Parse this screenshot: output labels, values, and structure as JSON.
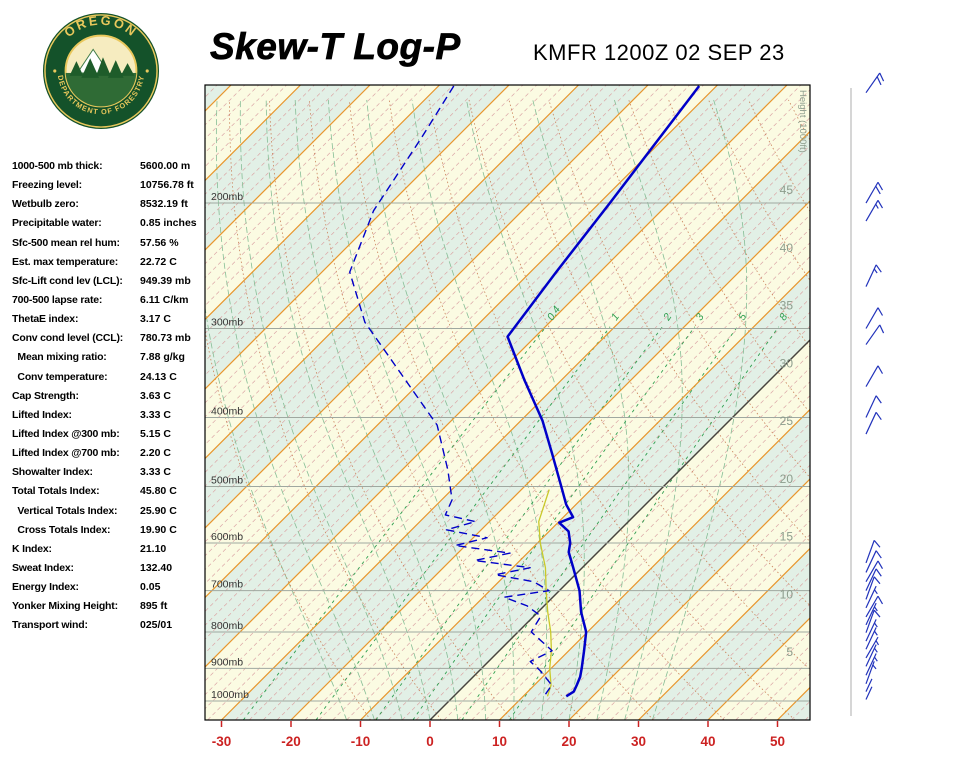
{
  "header": {
    "title": "Skew-T Log-P",
    "station": "KMFR 1200Z 02 SEP 23"
  },
  "logo": {
    "top_text": "OREGON",
    "bottom_text": "DEPARTMENT OF FORESTRY"
  },
  "indices": [
    {
      "label": "1000-500 mb thick:",
      "value": "5600.00 m"
    },
    {
      "label": "Freezing level:",
      "value": "10756.78 ft"
    },
    {
      "label": "Wetbulb zero:",
      "value": "8532.19 ft"
    },
    {
      "label": "Precipitable water:",
      "value": "0.85 inches"
    },
    {
      "label": "Sfc-500 mean rel hum:",
      "value": "57.56 %"
    },
    {
      "label": "Est. max temperature:",
      "value": "22.72 C"
    },
    {
      "label": "Sfc-Lift cond lev (LCL):",
      "value": "949.39 mb"
    },
    {
      "label": "700-500 lapse rate:",
      "value": "6.11 C/km"
    },
    {
      "label": "ThetaE index:",
      "value": "3.17 C"
    },
    {
      "label": "Conv cond level (CCL):",
      "value": "780.73 mb"
    },
    {
      "label": "  Mean mixing ratio:",
      "value": "7.88 g/kg"
    },
    {
      "label": "  Conv temperature:",
      "value": "24.13 C"
    },
    {
      "label": "Cap Strength:",
      "value": "3.63 C"
    },
    {
      "label": "Lifted Index:",
      "value": "3.33 C"
    },
    {
      "label": "Lifted Index @300 mb:",
      "value": "5.15 C"
    },
    {
      "label": "Lifted Index @700 mb:",
      "value": "2.20 C"
    },
    {
      "label": "Showalter Index:",
      "value": "3.33 C"
    },
    {
      "label": "Total Totals Index:",
      "value": "45.80 C"
    },
    {
      "label": "  Vertical Totals Index:",
      "value": "25.90 C"
    },
    {
      "label": "  Cross Totals Index:",
      "value": "19.90 C"
    },
    {
      "label": "K Index:",
      "value": "21.10"
    },
    {
      "label": "Sweat Index:",
      "value": "132.40"
    },
    {
      "label": "Energy Index:",
      "value": "0.05"
    },
    {
      "label": "Yonker Mixing Height:",
      "value": "895 ft"
    },
    {
      "label": "Transport wind:",
      "value": "025/01"
    }
  ],
  "chart_data": {
    "type": "line",
    "variant": "skew-t-log-p",
    "title": "Skew-T Log-P",
    "station": "KMFR 1200Z 02 SEP 23",
    "x_axis": {
      "unit": "C",
      "ticks": [
        -30,
        -20,
        -10,
        0,
        10,
        20,
        30,
        40,
        50
      ]
    },
    "y_axis": {
      "unit": "mb",
      "scale": "log",
      "labels": [
        "200mb",
        "300mb",
        "400mb",
        "500mb",
        "600mb",
        "700mb",
        "800mb",
        "900mb",
        "1000mb"
      ],
      "p_top": 137,
      "p_bottom": 1063
    },
    "height_axis": {
      "caption": "Height (1000ft)",
      "values": [
        45,
        40,
        35,
        30,
        25,
        20,
        15,
        10,
        5
      ]
    },
    "mixing_ratio_lines": [
      0.4,
      1,
      2,
      3,
      5,
      8
    ],
    "dry_adiabats_K": [
      260,
      270,
      280,
      290,
      300,
      310,
      320,
      330,
      340,
      350,
      360,
      370,
      380,
      390,
      400,
      410,
      420,
      430,
      440,
      450
    ],
    "moist_adiabats_C": [
      -12,
      -8,
      -4,
      0,
      4,
      8,
      12,
      16,
      20,
      24,
      28,
      32
    ],
    "skew_deg": 45,
    "highlight_isotherm_c": 0,
    "series": [
      {
        "name": "temperature",
        "style": "solid",
        "color": "#0000C8",
        "points": [
          [
            137,
            -52.5
          ],
          [
            200,
            -48.5
          ],
          [
            250,
            -46.3
          ],
          [
            308,
            -44.0
          ],
          [
            354,
            -35.4
          ],
          [
            404,
            -26.9
          ],
          [
            450,
            -20.7
          ],
          [
            500,
            -14.7
          ],
          [
            530,
            -11.4
          ],
          [
            552,
            -8.6
          ],
          [
            562,
            -9.8
          ],
          [
            578,
            -7.2
          ],
          [
            600,
            -5.3
          ],
          [
            618,
            -4.2
          ],
          [
            650,
            -1.3
          ],
          [
            700,
            2.9
          ],
          [
            750,
            6.2
          ],
          [
            800,
            9.8
          ],
          [
            850,
            12.2
          ],
          [
            900,
            14.4
          ],
          [
            925,
            15.4
          ],
          [
            950,
            16.1
          ],
          [
            970,
            16.6
          ],
          [
            985,
            16.2
          ]
        ]
      },
      {
        "name": "dewpoint",
        "style": "dashed",
        "color": "#0000C8",
        "points": [
          [
            137,
            -87.8
          ],
          [
            162,
            -85.0
          ],
          [
            205,
            -81.4
          ],
          [
            250,
            -76.0
          ],
          [
            294,
            -66.6
          ],
          [
            410,
            -41.4
          ],
          [
            474,
            -33.4
          ],
          [
            522,
            -28.5
          ],
          [
            548,
            -27.3
          ],
          [
            560,
            -22.0
          ],
          [
            575,
            -25.0
          ],
          [
            590,
            -18.0
          ],
          [
            605,
            -21.5
          ],
          [
            620,
            -12.5
          ],
          [
            635,
            -16.5
          ],
          [
            650,
            -7.5
          ],
          [
            665,
            -11.5
          ],
          [
            680,
            -5.0
          ],
          [
            700,
            -1.5
          ],
          [
            715,
            -7.0
          ],
          [
            735,
            -2.5
          ],
          [
            760,
            1.0
          ],
          [
            800,
            1.9
          ],
          [
            850,
            7.6
          ],
          [
            880,
            6.0
          ],
          [
            905,
            8.6
          ],
          [
            950,
            12.5
          ],
          [
            985,
            13.0
          ]
        ]
      },
      {
        "name": "wetbulb",
        "style": "solid",
        "color": "#C9C92A",
        "points": [
          [
            505,
            -16.0
          ],
          [
            560,
            -12.9
          ],
          [
            600,
            -9.6
          ],
          [
            650,
            -5.3
          ],
          [
            700,
            -1.9
          ],
          [
            750,
            1.4
          ],
          [
            800,
            4.7
          ],
          [
            850,
            7.5
          ],
          [
            900,
            9.8
          ],
          [
            950,
            12.4
          ],
          [
            985,
            13.5
          ]
        ]
      }
    ],
    "winds": [
      {
        "p": 140,
        "dir": 35,
        "spd": 20
      },
      {
        "p": 200,
        "dir": 30,
        "spd": 20
      },
      {
        "p": 212,
        "dir": 30,
        "spd": 15
      },
      {
        "p": 262,
        "dir": 25,
        "spd": 15
      },
      {
        "p": 300,
        "dir": 30,
        "spd": 10
      },
      {
        "p": 316,
        "dir": 35,
        "spd": 10
      },
      {
        "p": 362,
        "dir": 30,
        "spd": 10
      },
      {
        "p": 400,
        "dir": 25,
        "spd": 10
      },
      {
        "p": 422,
        "dir": 25,
        "spd": 10
      },
      {
        "p": 640,
        "dir": 20,
        "spd": 10
      },
      {
        "p": 660,
        "dir": 25,
        "spd": 10
      },
      {
        "p": 680,
        "dir": 30,
        "spd": 10
      },
      {
        "p": 700,
        "dir": 25,
        "spd": 10
      },
      {
        "p": 720,
        "dir": 20,
        "spd": 10
      },
      {
        "p": 740,
        "dir": 25,
        "spd": 5
      },
      {
        "p": 762,
        "dir": 30,
        "spd": 10
      },
      {
        "p": 782,
        "dir": 25,
        "spd": 5
      },
      {
        "p": 802,
        "dir": 20,
        "spd": 10
      },
      {
        "p": 824,
        "dir": 25,
        "spd": 5
      },
      {
        "p": 846,
        "dir": 25,
        "spd": 5
      },
      {
        "p": 870,
        "dir": 30,
        "spd": 5
      },
      {
        "p": 894,
        "dir": 25,
        "spd": 5
      },
      {
        "p": 920,
        "dir": 25,
        "spd": 5
      },
      {
        "p": 946,
        "dir": 20,
        "spd": 5
      },
      {
        "p": 970,
        "dir": 25,
        "spd": 2
      },
      {
        "p": 995,
        "dir": 25,
        "spd": 1
      }
    ],
    "colors": {
      "temperature": "#0000C8",
      "dewpoint": "#0000C8",
      "wetbulb": "#C9C92A",
      "isotherm": "#E8962E",
      "sub_isotherm": "#DBA6A6",
      "dry_adiabat": "#C9825A",
      "moist_adiabat": "#86BD96",
      "mixing_ratio": "#2F9E4F",
      "band_a": "#FBFBE2",
      "band_b": "#E2F0E6",
      "pressure_line": "#9FA8A0",
      "pressure_label": "#333333",
      "height_label": "#8C9C8C",
      "axis_label": "#CC2222",
      "zero_line": "#444444",
      "wind": "#2233BB",
      "border": "#000000"
    }
  }
}
